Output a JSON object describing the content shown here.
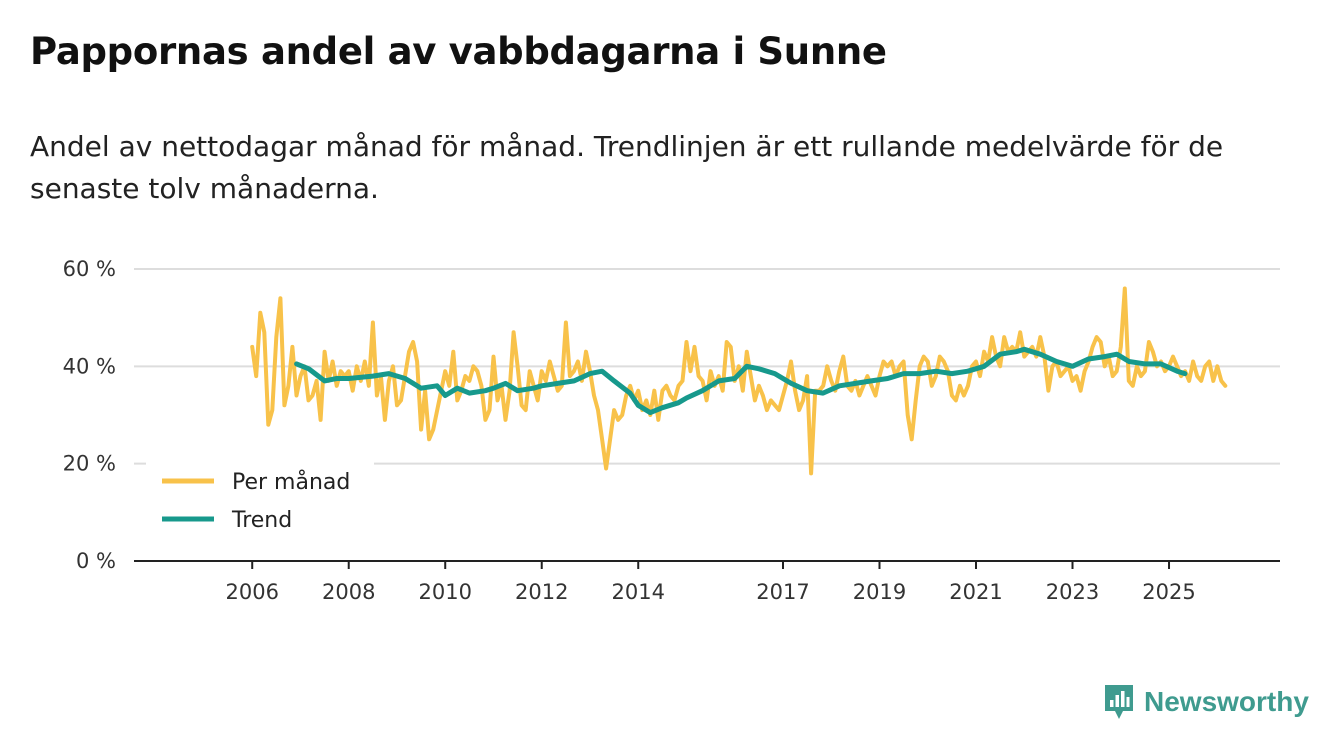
{
  "title": "Pappornas andel av vabbdagarna i Sunne",
  "subtitle": "Andel av nettodagar månad för månad. Trendlinjen är ett rullande medelvärde för de senaste tolv månaderna.",
  "brand": {
    "name": "Newsworthy",
    "color": "#3f9b8f"
  },
  "colors": {
    "per_month": "#f8c24a",
    "trend": "#17998c",
    "grid": "#dddddd",
    "axis": "#222222"
  },
  "chart_data": {
    "type": "line",
    "title": "Pappornas andel av vabbdagarna i Sunne",
    "xlabel": "",
    "ylabel": "",
    "x_domain": [
      2006.0,
      2025.33
    ],
    "xlim": [
      2003.55,
      2027.3
    ],
    "ylim": [
      0,
      60
    ],
    "y_ticks": [
      0,
      20,
      40,
      60
    ],
    "y_tick_labels": [
      "0 %",
      "20 %",
      "40 %",
      "60 %"
    ],
    "x_ticks": [
      2006,
      2008,
      2010,
      2012,
      2014,
      2017,
      2019,
      2021,
      2023,
      2025
    ],
    "x_tick_labels": [
      "2006",
      "2008",
      "2010",
      "2012",
      "2014",
      "2017",
      "2019",
      "2021",
      "2023",
      "2025"
    ],
    "legend": {
      "position": "bottom-left",
      "entries": [
        "Per månad",
        "Trend"
      ]
    },
    "series": [
      {
        "name": "Per månad",
        "color": "#f8c24a",
        "start": 2006.0,
        "step_months": 1,
        "values": [
          44,
          38,
          51,
          47,
          28,
          31,
          46,
          54,
          32,
          36,
          44,
          34,
          38,
          40,
          33,
          34,
          37,
          29,
          43,
          37,
          41,
          36,
          39,
          38,
          39,
          35,
          40,
          37,
          41,
          36,
          49,
          34,
          38,
          29,
          37,
          40,
          32,
          33,
          38,
          43,
          45,
          41,
          27,
          35,
          25,
          27,
          31,
          35,
          39,
          36,
          43,
          33,
          35,
          38,
          37,
          40,
          39,
          36,
          29,
          31,
          42,
          33,
          36,
          29,
          35,
          47,
          40,
          32,
          31,
          39,
          36,
          33,
          39,
          37,
          41,
          38,
          35,
          36,
          49,
          38,
          39,
          41,
          37,
          43,
          39,
          34,
          31,
          25,
          19,
          25,
          31,
          29,
          30,
          34,
          36,
          33,
          35,
          31,
          33,
          30,
          35,
          29,
          35,
          36,
          34,
          33,
          36,
          37,
          45,
          39,
          44,
          38,
          37,
          33,
          39,
          36,
          38,
          35,
          45,
          44,
          37,
          40,
          35,
          43,
          38,
          33,
          36,
          34,
          31,
          33,
          32,
          31,
          34,
          37,
          41,
          35,
          31,
          33,
          38,
          18,
          35,
          35,
          36,
          40,
          37,
          35,
          39,
          42,
          36,
          35,
          37,
          34,
          36,
          38,
          36,
          34,
          38,
          41,
          40,
          41,
          38,
          40,
          41,
          30,
          25,
          33,
          40,
          42,
          41,
          36,
          38,
          42,
          41,
          39,
          34,
          33,
          36,
          34,
          36,
          40,
          41,
          38,
          43,
          41,
          46,
          42,
          40,
          46,
          43,
          44,
          43,
          47,
          42,
          43,
          44,
          42,
          46,
          42,
          35,
          40,
          41,
          38,
          39,
          40,
          37,
          38,
          35,
          39,
          41,
          44,
          46,
          45,
          40,
          42,
          38,
          39,
          44,
          56,
          37,
          36,
          40,
          38,
          39,
          45,
          43,
          40,
          41,
          39,
          40,
          42,
          40,
          38,
          39,
          37,
          41,
          38,
          37,
          40,
          41,
          37,
          40,
          37,
          36
        ]
      },
      {
        "name": "Trend",
        "color": "#17998c",
        "x": [
          2006.92,
          2007.17,
          2007.5,
          2007.75,
          2008.0,
          2008.5,
          2008.83,
          2009.17,
          2009.5,
          2009.83,
          2010.0,
          2010.25,
          2010.5,
          2010.83,
          2011.0,
          2011.25,
          2011.5,
          2011.83,
          2012.0,
          2012.33,
          2012.67,
          2013.0,
          2013.25,
          2013.5,
          2013.83,
          2014.0,
          2014.25,
          2014.5,
          2014.83,
          2015.0,
          2015.33,
          2015.67,
          2016.0,
          2016.25,
          2016.5,
          2016.83,
          2017.17,
          2017.5,
          2017.83,
          2018.17,
          2018.5,
          2018.83,
          2019.17,
          2019.5,
          2019.83,
          2020.17,
          2020.5,
          2020.83,
          2021.17,
          2021.5,
          2021.83,
          2022.0,
          2022.33,
          2022.67,
          2023.0,
          2023.33,
          2023.67,
          2023.92,
          2024.17,
          2024.5,
          2024.83,
          2025.17,
          2025.33
        ],
        "y": [
          40.5,
          39.5,
          37.0,
          37.5,
          37.5,
          38.0,
          38.5,
          37.5,
          35.5,
          36.0,
          34.0,
          35.5,
          34.5,
          35.0,
          35.5,
          36.5,
          35.0,
          35.5,
          36.0,
          36.5,
          37.0,
          38.5,
          39.0,
          37.0,
          34.5,
          32.0,
          30.5,
          31.5,
          32.5,
          33.5,
          35.0,
          37.0,
          37.5,
          40.0,
          39.5,
          38.5,
          36.5,
          35.0,
          34.5,
          36.0,
          36.5,
          37.0,
          37.5,
          38.5,
          38.5,
          39.0,
          38.5,
          39.0,
          40.0,
          42.5,
          43.0,
          43.5,
          42.5,
          41.0,
          40.0,
          41.5,
          42.0,
          42.5,
          41.0,
          40.5,
          40.5,
          39.0,
          38.5
        ]
      }
    ]
  }
}
